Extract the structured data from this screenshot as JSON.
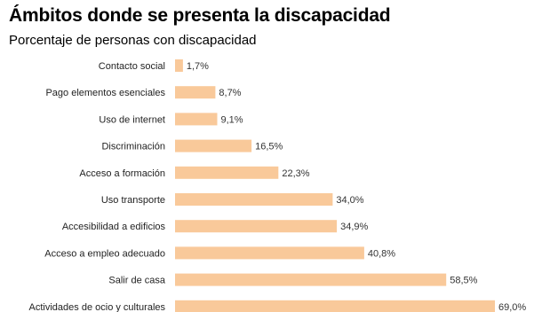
{
  "chart_data": {
    "type": "bar",
    "orientation": "horizontal",
    "title": "Ámbitos donde se presenta la discapacidad",
    "subtitle": "Porcentaje de personas con discapacidad",
    "categories": [
      "Contacto social",
      "Pago elementos esenciales",
      "Uso de internet",
      "Discriminación",
      "Acceso a formación",
      "Uso transporte",
      "Accesibilidad a edificios",
      "Acceso a empleo adecuado",
      "Salir de casa",
      "Actividades de ocio y culturales"
    ],
    "values": [
      1.7,
      8.7,
      9.1,
      16.5,
      22.3,
      34.0,
      34.9,
      40.8,
      58.5,
      69.0
    ],
    "value_labels": [
      "1,7%",
      "8,7%",
      "9,1%",
      "16,5%",
      "22,3%",
      "34,0%",
      "34,9%",
      "40,8%",
      "58,5%",
      "69,0%"
    ],
    "bar_color": "#f9c99a",
    "grid": false,
    "legend": "none"
  }
}
